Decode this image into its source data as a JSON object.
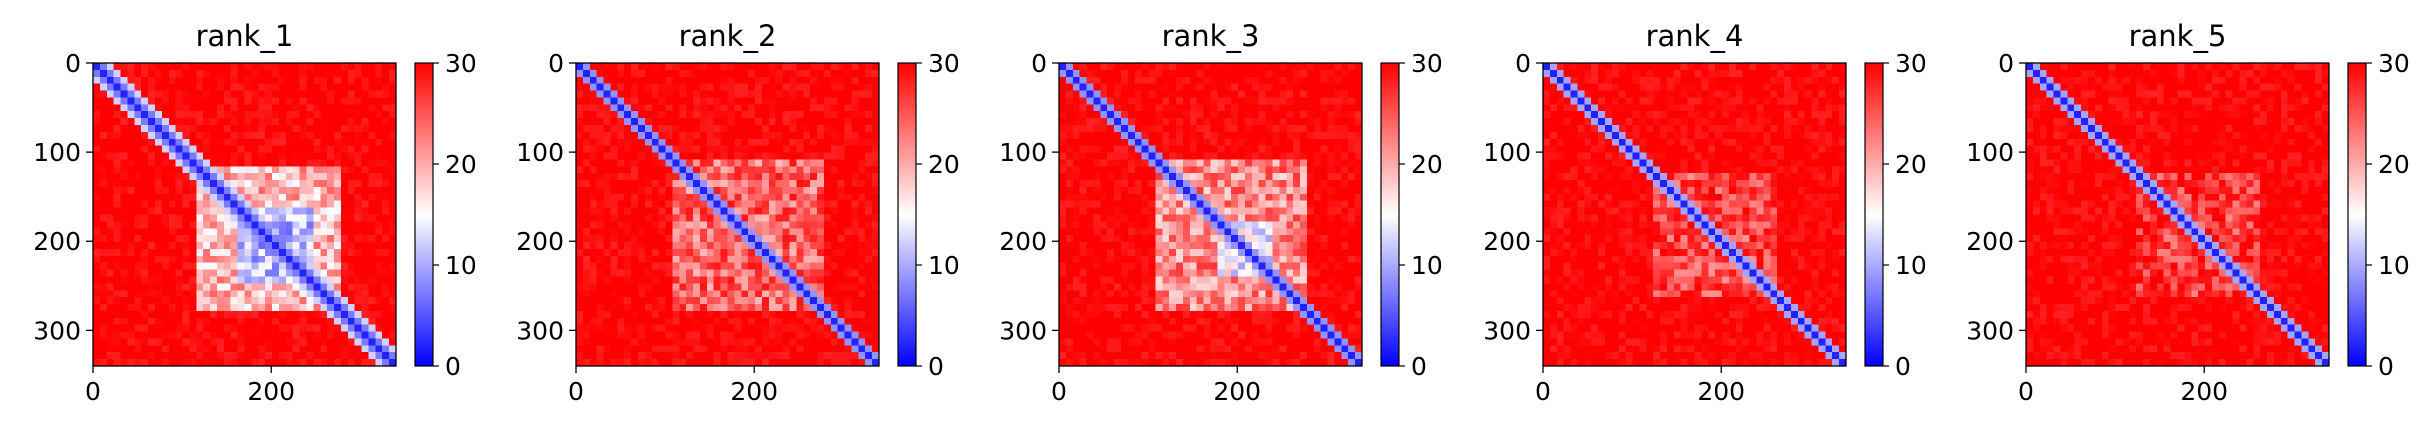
{
  "colors": {
    "low": "#0000ff",
    "mid": "#ffffff",
    "high": "#ff0000",
    "axis": "#000000"
  },
  "chart_data": [
    {
      "type": "heatmap",
      "title": "rank_1",
      "xlim": [
        0,
        340
      ],
      "ylim": [
        340,
        0
      ],
      "xticks": [
        "0",
        "200"
      ],
      "xtick_values": [
        0,
        200
      ],
      "yticks": [
        "0",
        "100",
        "200",
        "300"
      ],
      "ytick_values": [
        0,
        100,
        200,
        300
      ],
      "colorbar": {
        "range": [
          0,
          30
        ],
        "ticks": [
          "0",
          "10",
          "20",
          "30"
        ],
        "tick_values": [
          0,
          10,
          20,
          30
        ],
        "colormap": "bwr"
      },
      "features": {
        "diagonal_band_width": 18,
        "blocks": [
          {
            "x": [
              115,
              275
            ],
            "y": [
              115,
              275
            ],
            "level": 14
          },
          {
            "x": [
              160,
              250
            ],
            "y": [
              160,
              250
            ],
            "level": 6
          }
        ]
      }
    },
    {
      "type": "heatmap",
      "title": "rank_2",
      "xlim": [
        0,
        340
      ],
      "ylim": [
        340,
        0
      ],
      "xticks": [
        "0",
        "200"
      ],
      "xtick_values": [
        0,
        200
      ],
      "yticks": [
        "0",
        "100",
        "200",
        "300"
      ],
      "ytick_values": [
        0,
        100,
        200,
        300
      ],
      "colorbar": {
        "range": [
          0,
          30
        ],
        "ticks": [
          "0",
          "10",
          "20",
          "30"
        ],
        "tick_values": [
          0,
          10,
          20,
          30
        ],
        "colormap": "bwr"
      },
      "features": {
        "diagonal_band_width": 14,
        "blocks": [
          {
            "x": [
              110,
              280
            ],
            "y": [
              110,
              280
            ],
            "level": 19
          }
        ]
      }
    },
    {
      "type": "heatmap",
      "title": "rank_3",
      "xlim": [
        0,
        340
      ],
      "ylim": [
        340,
        0
      ],
      "xticks": [
        "0",
        "200"
      ],
      "xtick_values": [
        0,
        200
      ],
      "yticks": [
        "0",
        "100",
        "200",
        "300"
      ],
      "ytick_values": [
        0,
        100,
        200,
        300
      ],
      "colorbar": {
        "range": [
          0,
          30
        ],
        "ticks": [
          "0",
          "10",
          "20",
          "30"
        ],
        "tick_values": [
          0,
          10,
          20,
          30
        ],
        "colormap": "bwr"
      },
      "features": {
        "diagonal_band_width": 14,
        "blocks": [
          {
            "x": [
              110,
              280
            ],
            "y": [
              110,
              280
            ],
            "level": 17
          },
          {
            "x": [
              180,
              240
            ],
            "y": [
              180,
              240
            ],
            "level": 9
          }
        ]
      }
    },
    {
      "type": "heatmap",
      "title": "rank_4",
      "xlim": [
        0,
        340
      ],
      "ylim": [
        340,
        0
      ],
      "xticks": [
        "0",
        "200"
      ],
      "xtick_values": [
        0,
        200
      ],
      "yticks": [
        "0",
        "100",
        "200",
        "300"
      ],
      "ytick_values": [
        0,
        100,
        200,
        300
      ],
      "colorbar": {
        "range": [
          0,
          30
        ],
        "ticks": [
          "0",
          "10",
          "20",
          "30"
        ],
        "tick_values": [
          0,
          10,
          20,
          30
        ],
        "colormap": "bwr"
      },
      "features": {
        "diagonal_band_width": 12,
        "blocks": [
          {
            "x": [
              120,
              260
            ],
            "y": [
              120,
              260
            ],
            "level": 21
          }
        ]
      }
    },
    {
      "type": "heatmap",
      "title": "rank_5",
      "xlim": [
        0,
        340
      ],
      "ylim": [
        340,
        0
      ],
      "xticks": [
        "0",
        "200"
      ],
      "xtick_values": [
        0,
        200
      ],
      "yticks": [
        "0",
        "100",
        "200",
        "300"
      ],
      "ytick_values": [
        0,
        100,
        200,
        300
      ],
      "colorbar": {
        "range": [
          0,
          30
        ],
        "ticks": [
          "0",
          "10",
          "20",
          "30"
        ],
        "tick_values": [
          0,
          10,
          20,
          30
        ],
        "colormap": "bwr"
      },
      "features": {
        "diagonal_band_width": 12,
        "blocks": [
          {
            "x": [
              120,
              260
            ],
            "y": [
              120,
              260
            ],
            "level": 22
          }
        ]
      }
    }
  ]
}
